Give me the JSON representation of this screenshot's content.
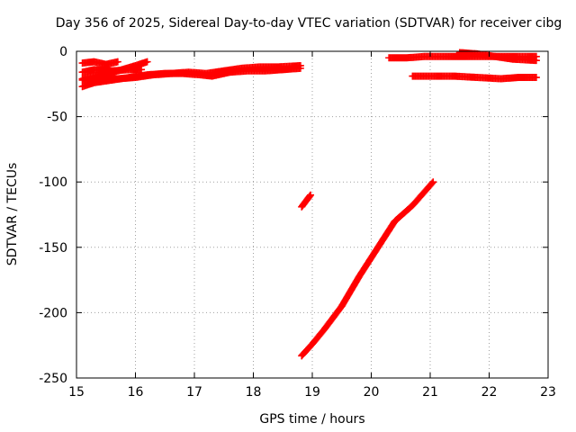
{
  "chart_data": {
    "type": "scatter",
    "title": "Day 356 of 2025, Sidereal Day-to-day VTEC variation (SDTVAR) for receiver cibg",
    "xlabel": "GPS time / hours",
    "ylabel": "SDTVAR / TECUs",
    "xlim": [
      15,
      23
    ],
    "ylim": [
      -250,
      0
    ],
    "xticks": [
      "15",
      "16",
      "17",
      "18",
      "19",
      "20",
      "21",
      "22",
      "23"
    ],
    "yticks": [
      "0",
      "-50",
      "-100",
      "-150",
      "-200",
      "-250"
    ],
    "grid": true,
    "marker": "+",
    "series_color": "#ff0000",
    "series": [
      {
        "x": [
          15.1,
          15.3,
          15.5,
          15.7
        ],
        "y": [
          -9,
          -8,
          -10,
          -8
        ]
      },
      {
        "x": [
          15.1,
          15.4,
          15.7,
          16.0,
          16.2
        ],
        "y": [
          -21,
          -18,
          -15,
          -11,
          -8
        ]
      },
      {
        "x": [
          15.1,
          15.3,
          15.6,
          15.9,
          16.1
        ],
        "y": [
          -16,
          -14,
          -15,
          -14,
          -14
        ]
      },
      {
        "x": [
          15.1,
          15.4,
          15.7,
          16.0,
          16.3,
          16.6,
          16.9,
          17.2,
          17.5,
          17.8,
          18.1,
          18.4,
          18.8
        ],
        "y": [
          -22,
          -21,
          -21,
          -20,
          -18,
          -17,
          -16,
          -17,
          -15,
          -13,
          -12,
          -12,
          -11
        ]
      },
      {
        "x": [
          15.1,
          15.3,
          15.6,
          15.9,
          16.2,
          16.5,
          16.8,
          17.1,
          17.3,
          17.6,
          17.9,
          18.2,
          18.5,
          18.8
        ],
        "y": [
          -27,
          -24,
          -22,
          -20,
          -18,
          -17,
          -17,
          -18,
          -19,
          -16,
          -15,
          -15,
          -14,
          -13
        ]
      },
      {
        "x": [
          18.82,
          18.87,
          18.92,
          18.97
        ],
        "y": [
          -119,
          -116,
          -113,
          -110
        ]
      },
      {
        "x": [
          18.82,
          19.0,
          19.2,
          19.5,
          19.8,
          20.1,
          20.4,
          20.7,
          21.05
        ],
        "y": [
          -233,
          -224,
          -213,
          -195,
          -172,
          -151,
          -130,
          -118,
          -100
        ]
      },
      {
        "x": [
          20.3,
          20.6,
          20.9,
          21.2,
          21.5,
          21.8,
          22.1,
          22.4,
          22.8
        ],
        "y": [
          -5,
          -5,
          -4,
          -4,
          -4,
          -4,
          -4,
          -4,
          -4
        ]
      },
      {
        "x": [
          21.5,
          21.8,
          22.1,
          22.4,
          22.8
        ],
        "y": [
          -1,
          -2,
          -4,
          -6,
          -7
        ]
      },
      {
        "x": [
          20.7,
          21.0,
          21.4,
          21.8,
          22.2,
          22.5,
          22.8
        ],
        "y": [
          -19,
          -19,
          -19,
          -20,
          -21,
          -20,
          -20
        ]
      }
    ]
  }
}
